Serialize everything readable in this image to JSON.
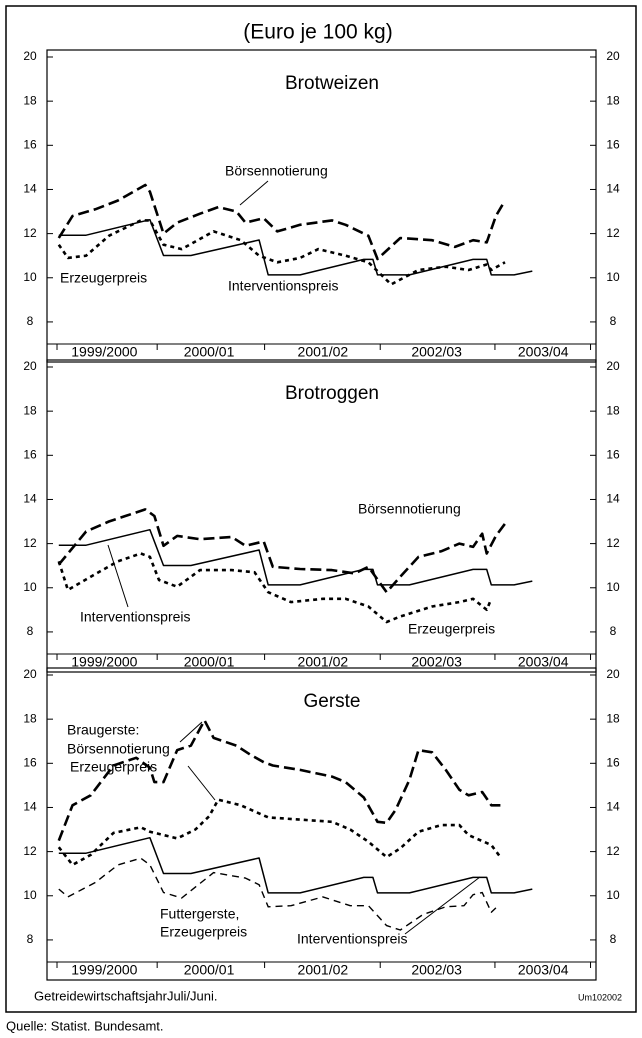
{
  "header": {
    "title": "(Euro je 100 kg)"
  },
  "chart_data": [
    {
      "type": "line",
      "title": "Brotweizen",
      "xlim": [
        -1.3,
        59
      ],
      "ylim": [
        7,
        20
      ],
      "yticks": [
        8,
        10,
        12,
        14,
        16,
        18,
        20
      ],
      "xticks": [
        {
          "value": 5,
          "label": "1999/2000"
        },
        {
          "value": 16.5,
          "label": "2000/01"
        },
        {
          "value": 29,
          "label": "2001/02"
        },
        {
          "value": 41.5,
          "label": "2002/03"
        },
        {
          "value": 53.2,
          "label": "2003/04"
        }
      ],
      "xtick_marks": [
        -0.2,
        10.8,
        22.6,
        35.3,
        47.9,
        58.4
      ],
      "annotations": [
        "Börsennotierung",
        "Erzeugerpreis",
        "Interventionspreis"
      ],
      "series": [
        {
          "name": "Interventionspreis",
          "color": "#000",
          "style": "solid",
          "x": [
            0,
            3,
            10,
            11.5,
            14.5,
            22,
            23,
            26.5,
            33.5,
            34.5,
            35,
            38.5,
            45.5,
            47,
            47.5,
            50,
            52
          ],
          "values": [
            11.93,
            11.93,
            12.63,
            11.01,
            11.01,
            11.71,
            10.13,
            10.13,
            10.83,
            10.83,
            10.13,
            10.13,
            10.83,
            10.83,
            10.13,
            10.13,
            10.3
          ]
        },
        {
          "name": "Börsennotierung",
          "color": "#000",
          "style": "dashed",
          "x": [
            0,
            1.5,
            4,
            6.5,
            9.5,
            10,
            11.5,
            13,
            15.5,
            17.5,
            19.5,
            20.5,
            22.5,
            24,
            26.5,
            30,
            31.5,
            34,
            35,
            37.5,
            41,
            43.5,
            45.5,
            47,
            48,
            49
          ],
          "values": [
            11.8,
            12.8,
            13.1,
            13.5,
            14.2,
            13.9,
            12.0,
            12.5,
            12.9,
            13.2,
            13.0,
            12.5,
            12.7,
            12.1,
            12.4,
            12.6,
            12.4,
            11.9,
            10.85,
            11.8,
            11.7,
            11.4,
            11.7,
            11.6,
            12.8,
            13.5
          ]
        },
        {
          "name": "Erzeugerpreis",
          "color": "#000",
          "style": "dotted",
          "x": [
            0,
            1,
            3,
            5.5,
            9,
            10,
            11.5,
            13.5,
            17,
            20,
            22,
            24,
            26.5,
            28.5,
            31.5,
            34,
            36.5,
            39.5,
            42.5,
            45,
            47,
            47.5,
            49
          ],
          "values": [
            11.5,
            10.9,
            11.0,
            11.9,
            12.6,
            12.6,
            11.5,
            11.3,
            12.1,
            11.7,
            11.0,
            10.7,
            10.9,
            11.3,
            11.0,
            10.7,
            9.7,
            10.35,
            10.5,
            10.35,
            10.6,
            10.35,
            10.7
          ]
        }
      ]
    },
    {
      "type": "line",
      "title": "Brotroggen",
      "xlim": [
        -1.3,
        59
      ],
      "ylim": [
        7,
        20
      ],
      "yticks": [
        8,
        10,
        12,
        14,
        16,
        18,
        20
      ],
      "xticks": [
        {
          "value": 5,
          "label": "1999/2000"
        },
        {
          "value": 16.5,
          "label": "2000/01"
        },
        {
          "value": 29,
          "label": "2001/02"
        },
        {
          "value": 41.5,
          "label": "2002/03"
        },
        {
          "value": 53.2,
          "label": "2003/04"
        }
      ],
      "xtick_marks": [
        -0.2,
        10.8,
        22.6,
        35.3,
        47.9,
        58.4
      ],
      "annotations": [
        "Börsennotierung",
        "Interventionspreis",
        "Erzeugerpreis"
      ],
      "series": [
        {
          "name": "Interventionspreis",
          "color": "#000",
          "style": "solid",
          "x": [
            0,
            3,
            10,
            11.5,
            14.5,
            22,
            23,
            26.5,
            33.5,
            34.5,
            35,
            38.5,
            45.5,
            47,
            47.5,
            50,
            52
          ],
          "values": [
            11.93,
            11.93,
            12.63,
            11.01,
            11.01,
            11.71,
            10.13,
            10.13,
            10.83,
            10.83,
            10.13,
            10.13,
            10.83,
            10.83,
            10.13,
            10.13,
            10.3
          ]
        },
        {
          "name": "Börsennotierung",
          "color": "#000",
          "style": "dashed",
          "x": [
            0,
            3,
            5.5,
            9.5,
            10.5,
            11.5,
            13,
            15.5,
            19,
            20.5,
            22.5,
            23.5,
            26.5,
            30,
            32.5,
            34,
            36,
            37.5,
            39.5,
            42,
            44,
            45.5,
            46.5,
            47,
            48,
            49
          ],
          "values": [
            11.05,
            12.55,
            13.0,
            13.55,
            13.25,
            11.9,
            12.35,
            12.2,
            12.3,
            11.9,
            12.1,
            10.95,
            10.85,
            10.8,
            10.65,
            10.95,
            9.8,
            10.5,
            11.4,
            11.65,
            12.0,
            11.85,
            12.45,
            11.55,
            12.35,
            12.9
          ]
        },
        {
          "name": "Erzeugerpreis",
          "color": "#000",
          "style": "dotted",
          "x": [
            0,
            1,
            3.5,
            6.5,
            9,
            10,
            11,
            13,
            15.5,
            19,
            21.5,
            23,
            25.5,
            29,
            31.5,
            34,
            36,
            37.5,
            41,
            44,
            45.5,
            47,
            47.5
          ],
          "values": [
            11.2,
            9.9,
            10.5,
            11.2,
            11.55,
            11.4,
            10.35,
            10.05,
            10.8,
            10.8,
            10.7,
            9.8,
            9.35,
            9.5,
            9.5,
            9.15,
            8.45,
            8.7,
            9.15,
            9.35,
            9.5,
            9.0,
            9.5
          ]
        }
      ]
    },
    {
      "type": "line",
      "title": "Gerste",
      "xlim": [
        -1.3,
        59
      ],
      "ylim": [
        7,
        20
      ],
      "yticks": [
        8,
        10,
        12,
        14,
        16,
        18,
        20
      ],
      "xticks": [
        {
          "value": 5,
          "label": "1999/2000"
        },
        {
          "value": 16.5,
          "label": "2000/01"
        },
        {
          "value": 29,
          "label": "2001/02"
        },
        {
          "value": 41.5,
          "label": "2002/03"
        },
        {
          "value": 53.2,
          "label": "2003/04"
        }
      ],
      "xtick_marks": [
        -0.2,
        10.8,
        22.6,
        35.3,
        47.9,
        58.4
      ],
      "annotations": [
        "Braugerste:",
        "Börsennotierung",
        "Erzeugerpreis",
        "Futtergerste,",
        "Erzeugerpreis",
        "Interventionspreis"
      ],
      "series": [
        {
          "name": "Interventionspreis",
          "color": "#000",
          "style": "solid",
          "x": [
            0,
            3,
            10,
            11.5,
            14.5,
            22,
            23,
            26.5,
            33.5,
            34.5,
            35,
            38.5,
            45.5,
            47,
            47.5,
            50,
            52
          ],
          "values": [
            11.93,
            11.93,
            12.63,
            11.01,
            11.01,
            11.71,
            10.13,
            10.13,
            10.83,
            10.83,
            10.13,
            10.13,
            10.83,
            10.83,
            10.13,
            10.13,
            10.3
          ]
        },
        {
          "name": "Braugerste: Börsennotierung",
          "color": "#000",
          "style": "dashed",
          "x": [
            0,
            1.5,
            3.5,
            6,
            8.5,
            10,
            10.5,
            11.5,
            13,
            14.5,
            16,
            17,
            19.5,
            21,
            22.5,
            23.5,
            26.5,
            30,
            31.5,
            33.5,
            35,
            36,
            37,
            38.5,
            39.5,
            41,
            42.5,
            44,
            45,
            46.5,
            47.5,
            48.5
          ],
          "values": [
            12.5,
            14.1,
            14.55,
            15.9,
            16.25,
            15.8,
            15.15,
            15.15,
            16.6,
            16.8,
            17.95,
            17.15,
            16.8,
            16.4,
            16.05,
            15.9,
            15.7,
            15.4,
            15.15,
            14.45,
            13.35,
            13.3,
            13.9,
            15.25,
            16.6,
            16.5,
            15.7,
            14.8,
            14.55,
            14.7,
            14.1,
            14.1
          ]
        },
        {
          "name": "Braugerste: Erzeugerpreis",
          "color": "#000",
          "style": "dotted",
          "x": [
            0,
            1.5,
            3.5,
            6,
            9,
            10,
            13,
            15,
            16.5,
            17.5,
            20,
            23,
            26.5,
            30,
            32,
            34,
            36,
            37.5,
            39.5,
            42,
            44,
            45,
            47.5,
            48.5
          ],
          "values": [
            12.2,
            11.4,
            11.85,
            12.85,
            13.1,
            12.9,
            12.6,
            13.0,
            13.6,
            14.35,
            14.1,
            13.55,
            13.45,
            13.35,
            13.0,
            12.45,
            11.75,
            12.15,
            12.9,
            13.2,
            13.2,
            12.75,
            12.3,
            11.75
          ]
        },
        {
          "name": "Futtergerste, Erzeugerpreis",
          "color": "#000",
          "style": "shortdash",
          "x": [
            0,
            1,
            4,
            6.5,
            9,
            10,
            11.5,
            13.5,
            17,
            20.5,
            22,
            23,
            25.5,
            29,
            32,
            34,
            36,
            37.5,
            40,
            42.5,
            44.5,
            45.5,
            46.5,
            47.5,
            48
          ],
          "values": [
            10.3,
            9.95,
            10.6,
            11.4,
            11.7,
            11.4,
            10.15,
            9.9,
            11.05,
            10.8,
            10.5,
            9.5,
            9.55,
            9.95,
            9.55,
            9.55,
            8.65,
            8.45,
            9.15,
            9.5,
            9.55,
            10.05,
            10.15,
            9.25,
            9.45
          ]
        }
      ]
    }
  ],
  "footer": {
    "note": "GetreidewirtschaftsjahrJuli/Juni.",
    "code": "Um102002",
    "source": "Quelle: Statist. Bundesamt."
  }
}
